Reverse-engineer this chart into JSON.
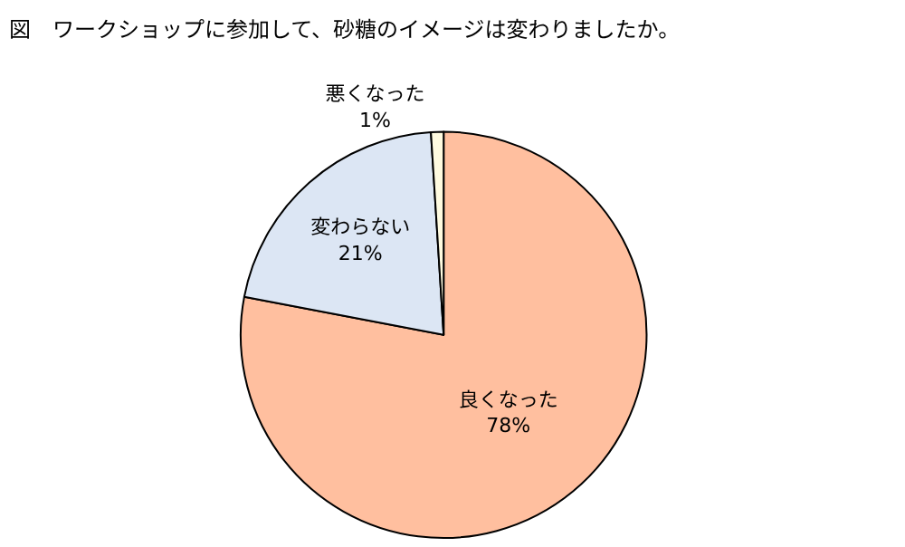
{
  "chart_data": {
    "type": "pie",
    "title": "図　ワークショップに参加して、砂糖のイメージは変わりましたか。",
    "categories": [
      "良くなった",
      "変わらない",
      "悪くなった"
    ],
    "values": [
      78,
      21,
      1
    ],
    "value_labels": [
      "78%",
      "21%",
      "1%"
    ],
    "colors": [
      "#ffbf9f",
      "#dce6f4",
      "#fffbe0"
    ],
    "legend": false
  }
}
